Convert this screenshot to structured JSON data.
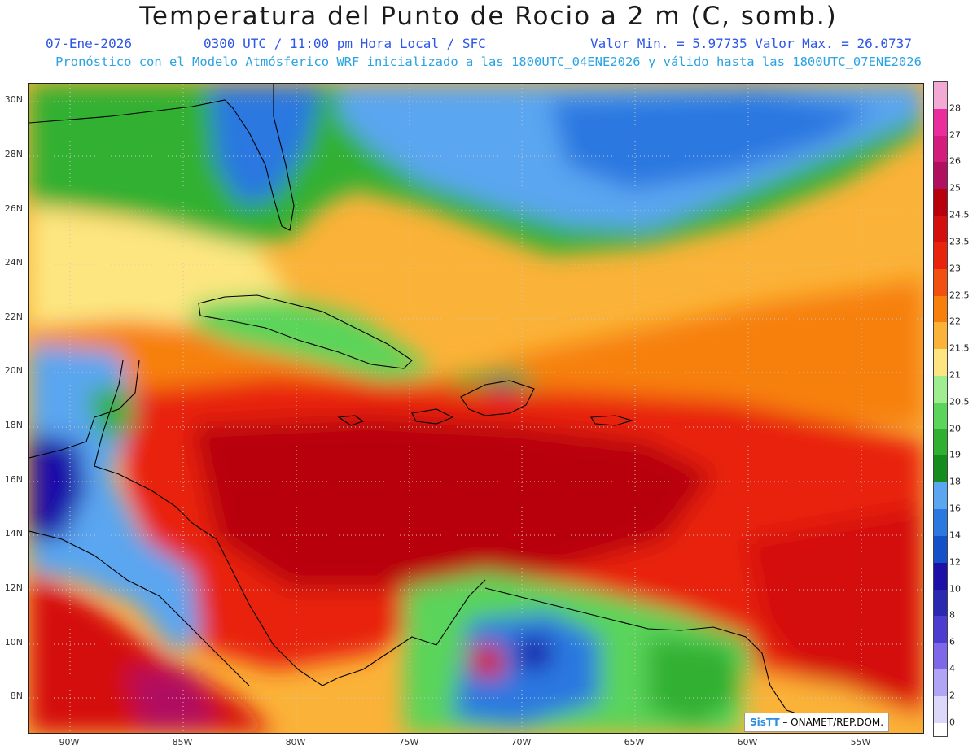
{
  "title": "Temperatura del Punto de Rocio a 2 m (C, somb.)",
  "subtitle": {
    "date": "07-Ene-2026",
    "time": "0300 UTC / 11:00 pm Hora Local / SFC",
    "minmax": "Valor Min. = 5.97735  Valor Max. = 26.0737",
    "model_line": "Pronóstico con el Modelo Atmósferico WRF inicializado a las 1800UTC_04ENE2026 y válido hasta las  1800UTC_07ENE2026"
  },
  "lat_labels": [
    "30N",
    "28N",
    "26N",
    "24N",
    "22N",
    "20N",
    "18N",
    "16N",
    "14N",
    "12N",
    "10N",
    "8N"
  ],
  "lon_labels": [
    "90W",
    "85W",
    "80W",
    "75W",
    "70W",
    "65W",
    "60W",
    "55W"
  ],
  "colorbar": {
    "labels": [
      "28",
      "27",
      "26",
      "25",
      "24.5",
      "23.5",
      "23",
      "22.5",
      "22",
      "21.5",
      "21",
      "20.5",
      "20",
      "19",
      "18",
      "16",
      "14",
      "12",
      "10",
      "8",
      "6",
      "4",
      "2",
      "0"
    ],
    "colors": [
      "#f2a9d4",
      "#ea2c9c",
      "#d41c7c",
      "#b01060",
      "#b8000c",
      "#d40f0f",
      "#e8240c",
      "#f25010",
      "#f7800c",
      "#fbb238",
      "#fde680",
      "#a0ec90",
      "#5ad45a",
      "#30b030",
      "#148c1e",
      "#5aa6f0",
      "#2a78e0",
      "#1450c8",
      "#1c10a8",
      "#2a2ab0",
      "#4c3cd0",
      "#7f68e8",
      "#b0a4f4",
      "#dcd8fa"
    ]
  },
  "credit": {
    "logo": "SisTT",
    "text": " – ONAMET/REP.DOM."
  }
}
